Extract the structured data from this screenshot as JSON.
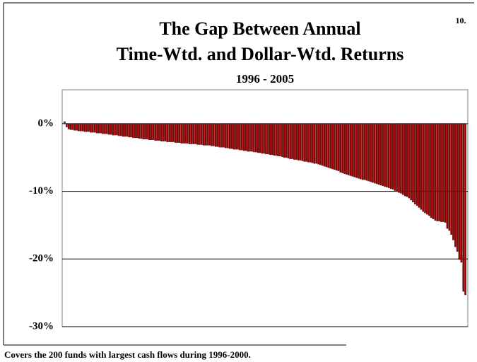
{
  "page_number": "10.",
  "footnote": "Covers the 200 funds with largest cash flows during 1996-2000.",
  "chart_data": {
    "type": "bar",
    "title": [
      "The Gap Between Annual",
      "Time-Wtd. and Dollar-Wtd. Returns"
    ],
    "subtitle": "1996 - 2005",
    "color": "#990000",
    "positive_color": "#333399",
    "grid": true,
    "ylim": [
      -30,
      5
    ],
    "yticks": [
      {
        "value": 0,
        "label": "0%"
      },
      {
        "value": -10,
        "label": "-10%"
      },
      {
        "value": -20,
        "label": "-20%"
      },
      {
        "value": -30,
        "label": "-30%"
      }
    ],
    "values": [
      0.3,
      -0.5,
      -0.8,
      -0.9,
      -0.9,
      -1.0,
      -1.0,
      -1.1,
      -1.1,
      -1.1,
      -1.2,
      -1.2,
      -1.2,
      -1.3,
      -1.3,
      -1.3,
      -1.4,
      -1.4,
      -1.4,
      -1.5,
      -1.5,
      -1.5,
      -1.6,
      -1.6,
      -1.7,
      -1.7,
      -1.7,
      -1.8,
      -1.8,
      -1.9,
      -1.9,
      -1.9,
      -2.0,
      -2.0,
      -2.1,
      -2.1,
      -2.1,
      -2.2,
      -2.2,
      -2.3,
      -2.3,
      -2.3,
      -2.4,
      -2.4,
      -2.4,
      -2.5,
      -2.5,
      -2.5,
      -2.6,
      -2.6,
      -2.6,
      -2.7,
      -2.7,
      -2.7,
      -2.7,
      -2.8,
      -2.8,
      -2.8,
      -2.9,
      -2.9,
      -2.9,
      -2.9,
      -3.0,
      -3.0,
      -3.0,
      -3.0,
      -3.1,
      -3.1,
      -3.1,
      -3.2,
      -3.2,
      -3.2,
      -3.2,
      -3.3,
      -3.3,
      -3.4,
      -3.4,
      -3.5,
      -3.5,
      -3.5,
      -3.6,
      -3.6,
      -3.7,
      -3.7,
      -3.8,
      -3.8,
      -3.8,
      -3.9,
      -3.9,
      -4.0,
      -4.0,
      -4.1,
      -4.1,
      -4.1,
      -4.2,
      -4.2,
      -4.3,
      -4.3,
      -4.4,
      -4.4,
      -4.5,
      -4.5,
      -4.6,
      -4.6,
      -4.7,
      -4.7,
      -4.8,
      -4.8,
      -4.9,
      -5.0,
      -5.0,
      -5.1,
      -5.2,
      -5.2,
      -5.3,
      -5.3,
      -5.4,
      -5.4,
      -5.5,
      -5.6,
      -5.6,
      -5.7,
      -5.7,
      -5.8,
      -5.9,
      -5.9,
      -6.0,
      -6.1,
      -6.2,
      -6.3,
      -6.4,
      -6.5,
      -6.6,
      -6.7,
      -6.8,
      -6.9,
      -7.0,
      -7.2,
      -7.3,
      -7.4,
      -7.5,
      -7.6,
      -7.7,
      -7.8,
      -7.9,
      -8.0,
      -8.1,
      -8.2,
      -8.3,
      -8.3,
      -8.4,
      -8.5,
      -8.6,
      -8.7,
      -8.8,
      -8.9,
      -9.0,
      -9.1,
      -9.2,
      -9.3,
      -9.4,
      -9.5,
      -9.6,
      -9.7,
      -9.9,
      -10.0,
      -10.2,
      -10.3,
      -10.5,
      -10.7,
      -10.8,
      -11.0,
      -11.3,
      -11.6,
      -11.9,
      -12.1,
      -12.4,
      -12.7,
      -13.0,
      -13.2,
      -13.4,
      -13.6,
      -13.9,
      -14.1,
      -14.3,
      -14.4,
      -14.4,
      -14.5,
      -14.5,
      -14.6,
      -15.5,
      -15.8,
      -16.4,
      -17.2,
      -18.2,
      -18.9,
      -20.1,
      -20.5,
      -24.8,
      -25.3
    ]
  }
}
